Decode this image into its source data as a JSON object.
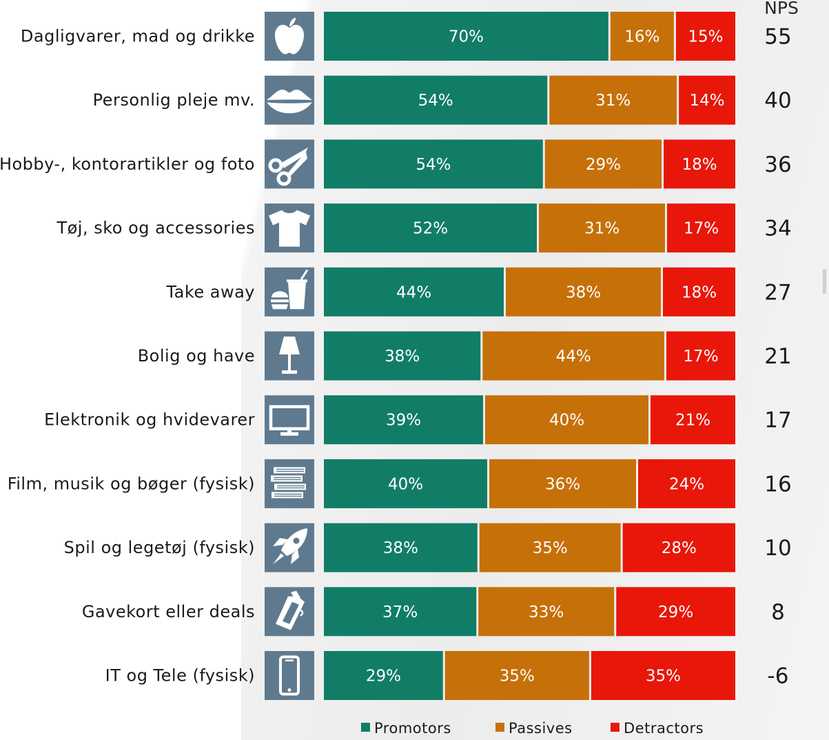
{
  "chart_data": {
    "type": "bar",
    "orientation": "horizontal-stacked-100",
    "categories": [
      "Dagligvarer, mad og drikke",
      "Personlig pleje mv.",
      "Hobby-, kontorartikler og foto",
      "Tøj, sko og accessories",
      "Take away",
      "Bolig og have",
      "Elektronik og hvidevarer",
      "Film, musik og bøger (fysisk)",
      "Spil og legetøj (fysisk)",
      "Gavekort eller deals",
      "IT og Tele (fysisk)"
    ],
    "category_icons": [
      "apple-icon",
      "lips-icon",
      "scissors-icon",
      "tshirt-icon",
      "takeaway-icon",
      "lamp-icon",
      "tv-icon",
      "books-icon",
      "rocket-icon",
      "giftcard-icon",
      "phone-icon"
    ],
    "series": [
      {
        "name": "Promotors",
        "color": "#117d67",
        "values": [
          70,
          54,
          54,
          52,
          44,
          38,
          39,
          40,
          38,
          37,
          29
        ]
      },
      {
        "name": "Passives",
        "color": "#c67009",
        "values": [
          16,
          31,
          29,
          31,
          38,
          44,
          40,
          36,
          35,
          33,
          35
        ]
      },
      {
        "name": "Detractors",
        "color": "#e8170a",
        "values": [
          15,
          14,
          18,
          17,
          18,
          17,
          21,
          24,
          28,
          29,
          35
        ]
      }
    ],
    "value_suffix": "%",
    "nps_header": "NPS",
    "nps": [
      "55",
      "40",
      "36",
      "34",
      "27",
      "21",
      "17",
      "16",
      "10",
      "8",
      "-6"
    ],
    "legend_position": "bottom",
    "icon_box_color": "#5f7a8f",
    "grid": false
  }
}
